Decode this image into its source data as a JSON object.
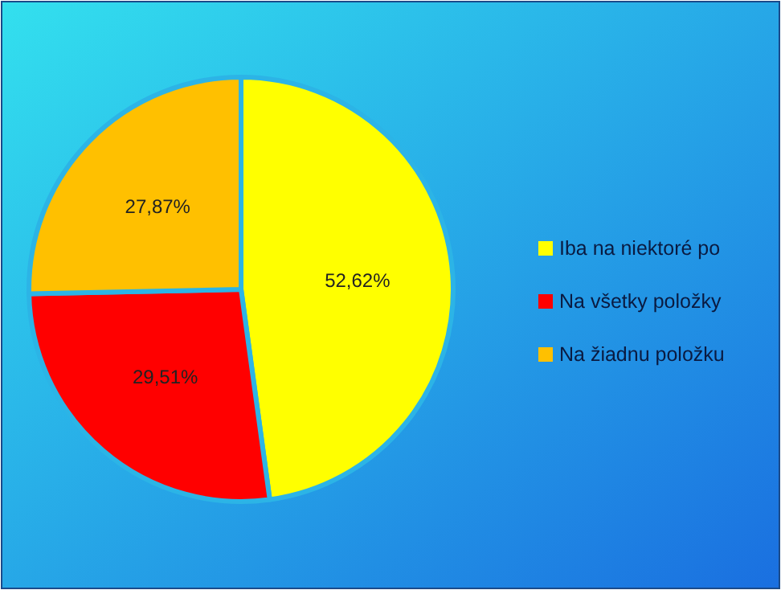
{
  "chart_data": {
    "type": "pie",
    "categories": [
      "Iba na niektoré po",
      "Na všetky položky",
      "Na žiadnu položku"
    ],
    "values": [
      52.62,
      29.51,
      27.87
    ],
    "colors": [
      "#ffff00",
      "#ff0000",
      "#ffc000"
    ],
    "value_labels": [
      "52,62%",
      "29,51%",
      "27,87%"
    ],
    "legend": "right"
  }
}
